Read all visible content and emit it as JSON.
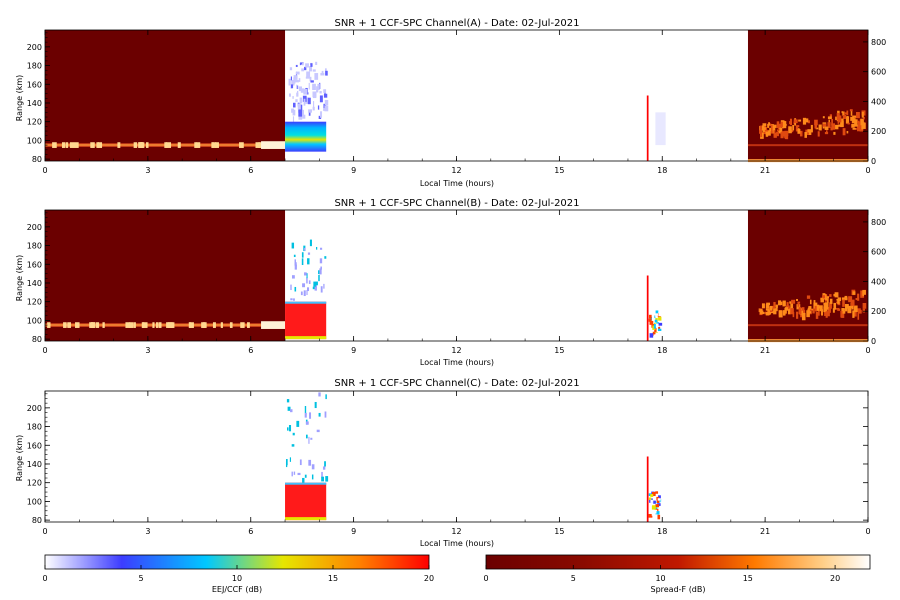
{
  "chart_data": [
    {
      "type": "heatmap",
      "title": "SNR + 1 CCF-SPC Channel(A) - Date: 02-Jul-2021",
      "xlabel": "Local Time (hours)",
      "ylabel": "Range (km)",
      "xlim": [
        0,
        24
      ],
      "ylim": [
        78,
        218
      ],
      "xticks": [
        "0",
        "3",
        "6",
        "9",
        "12",
        "15",
        "18",
        "21",
        "0"
      ],
      "yticks": [
        "80",
        "100",
        "120",
        "140",
        "160",
        "180",
        "200"
      ],
      "right_ylim": [
        0,
        880
      ],
      "right_yticks": [
        "0",
        "200",
        "400",
        "600",
        "800"
      ],
      "blocks": [
        {
          "kind": "spreadf-bg",
          "x": [
            0,
            7.0
          ],
          "y": [
            78,
            218
          ]
        },
        {
          "kind": "spreadf-layer",
          "x": [
            0,
            7.0
          ],
          "y": [
            93,
            97
          ]
        },
        {
          "kind": "eej-scatter",
          "x": [
            7.1,
            8.2
          ],
          "y": [
            125,
            185
          ]
        },
        {
          "kind": "eej-echo",
          "x": [
            7.0,
            8.2
          ],
          "y": [
            88,
            120
          ]
        },
        {
          "kind": "red-spike",
          "x": [
            17.55,
            17.6
          ],
          "y": [
            78,
            148
          ]
        },
        {
          "kind": "eej-faint",
          "x": [
            17.8,
            18.1
          ],
          "y": [
            95,
            130
          ]
        },
        {
          "kind": "spreadf-bg",
          "x": [
            20.5,
            24
          ],
          "y": [
            78,
            218
          ]
        },
        {
          "kind": "spreadf-plume",
          "x": [
            20.5,
            24
          ],
          "y": [
            85,
            150
          ]
        }
      ]
    },
    {
      "type": "heatmap",
      "title": "SNR + 1 CCF-SPC Channel(B) - Date: 02-Jul-2021",
      "xlabel": "Local Time (hours)",
      "ylabel": "Range (km)",
      "xlim": [
        0,
        24
      ],
      "ylim": [
        78,
        218
      ],
      "xticks": [
        "0",
        "3",
        "6",
        "9",
        "12",
        "15",
        "18",
        "21",
        "0"
      ],
      "yticks": [
        "80",
        "100",
        "120",
        "140",
        "160",
        "180",
        "200"
      ],
      "right_ylim": [
        0,
        880
      ],
      "right_yticks": [
        "0",
        "200",
        "400",
        "600",
        "800"
      ],
      "blocks": [
        {
          "kind": "spreadf-bg",
          "x": [
            0,
            7.0
          ],
          "y": [
            78,
            218
          ]
        },
        {
          "kind": "spreadf-layer",
          "x": [
            0,
            7.0
          ],
          "y": [
            93,
            97
          ]
        },
        {
          "kind": "eej-red",
          "x": [
            7.0,
            8.2
          ],
          "y": [
            80,
            120
          ]
        },
        {
          "kind": "eej-sparse",
          "x": [
            7.1,
            8.2
          ],
          "y": [
            120,
            190
          ]
        },
        {
          "kind": "red-spike",
          "x": [
            17.55,
            17.6
          ],
          "y": [
            78,
            148
          ]
        },
        {
          "kind": "eej-mixed",
          "x": [
            17.6,
            17.9
          ],
          "y": [
            85,
            112
          ]
        },
        {
          "kind": "spreadf-bg",
          "x": [
            20.5,
            24
          ],
          "y": [
            78,
            218
          ]
        },
        {
          "kind": "spreadf-plume",
          "x": [
            20.5,
            24
          ],
          "y": [
            85,
            150
          ]
        }
      ]
    },
    {
      "type": "heatmap",
      "title": "SNR + 1 CCF-SPC Channel(C) - Date: 02-Jul-2021",
      "xlabel": "Local Time (hours)",
      "ylabel": "Range (km)",
      "xlim": [
        0,
        24
      ],
      "ylim": [
        78,
        218
      ],
      "xticks": [
        "0",
        "3",
        "6",
        "9",
        "12",
        "15",
        "18",
        "21",
        "0"
      ],
      "yticks": [
        "80",
        "100",
        "120",
        "140",
        "160",
        "180",
        "200"
      ],
      "blocks": [
        {
          "kind": "eej-red",
          "x": [
            7.0,
            8.2
          ],
          "y": [
            80,
            120
          ]
        },
        {
          "kind": "eej-sparse",
          "x": [
            7.0,
            8.2
          ],
          "y": [
            120,
            218
          ]
        },
        {
          "kind": "red-spike",
          "x": [
            17.55,
            17.6
          ],
          "y": [
            78,
            148
          ]
        },
        {
          "kind": "eej-mixed",
          "x": [
            17.6,
            17.9
          ],
          "y": [
            85,
            112
          ]
        }
      ]
    }
  ],
  "colorbars": [
    {
      "label": "EEJ/CCF (dB)",
      "range": [
        0,
        20
      ],
      "ticks": [
        "0",
        "5",
        "10",
        "15",
        "20"
      ],
      "colormap": "eej"
    },
    {
      "label": "Spread-F (dB)",
      "range": [
        0,
        22
      ],
      "ticks": [
        "0",
        "5",
        "10",
        "15",
        "20"
      ],
      "colormap": "spreadf"
    }
  ],
  "colormaps": {
    "eej": [
      "#ffffff",
      "#3c3cff",
      "#00c8ff",
      "#e6e600",
      "#ff8000",
      "#ff0000"
    ],
    "spreadf": [
      "#6b0000",
      "#8a0a00",
      "#c01800",
      "#ff7a00",
      "#ffd08a",
      "#ffffff"
    ]
  }
}
